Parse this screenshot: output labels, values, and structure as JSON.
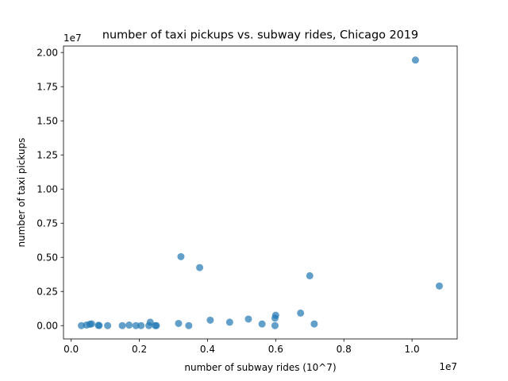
{
  "chart_data": {
    "type": "scatter",
    "title": "number of taxi pickups vs. subway rides, Chicago 2019",
    "xlabel": "number of subway rides (10^7)",
    "ylabel": "number of taxi pickups",
    "x_offset_label": "1e7",
    "y_offset_label": "1e7",
    "xlim": [
      -0.0225,
      1.1325
    ],
    "ylim": [
      -0.0975,
      2.0475
    ],
    "x_ticks": [
      0.0,
      0.2,
      0.4,
      0.6,
      0.8,
      1.0
    ],
    "x_tick_labels": [
      "0.0",
      "0.2",
      "0.4",
      "0.6",
      "0.8",
      "1.0"
    ],
    "y_ticks": [
      0.0,
      0.25,
      0.5,
      0.75,
      1.0,
      1.25,
      1.5,
      1.75,
      2.0
    ],
    "y_tick_labels": [
      "0.00",
      "0.25",
      "0.50",
      "0.75",
      "1.00",
      "1.25",
      "1.50",
      "1.75",
      "2.00"
    ],
    "grid": false,
    "marker_color": "#1f77b4",
    "marker_alpha": 0.7,
    "points": [
      {
        "x": 0.03,
        "y": 0.0
      },
      {
        "x": 0.045,
        "y": 0.004
      },
      {
        "x": 0.055,
        "y": 0.01
      },
      {
        "x": 0.06,
        "y": 0.013
      },
      {
        "x": 0.08,
        "y": 0.002
      },
      {
        "x": 0.082,
        "y": 0.001
      },
      {
        "x": 0.107,
        "y": 0.0
      },
      {
        "x": 0.15,
        "y": 0.0
      },
      {
        "x": 0.17,
        "y": 0.004
      },
      {
        "x": 0.19,
        "y": 0.0
      },
      {
        "x": 0.205,
        "y": 0.0
      },
      {
        "x": 0.228,
        "y": 0.0
      },
      {
        "x": 0.232,
        "y": 0.025
      },
      {
        "x": 0.247,
        "y": 0.0
      },
      {
        "x": 0.25,
        "y": 0.0
      },
      {
        "x": 0.315,
        "y": 0.016
      },
      {
        "x": 0.322,
        "y": 0.505
      },
      {
        "x": 0.345,
        "y": 0.0
      },
      {
        "x": 0.377,
        "y": 0.425
      },
      {
        "x": 0.408,
        "y": 0.04
      },
      {
        "x": 0.465,
        "y": 0.025
      },
      {
        "x": 0.52,
        "y": 0.048
      },
      {
        "x": 0.56,
        "y": 0.012
      },
      {
        "x": 0.598,
        "y": 0.0
      },
      {
        "x": 0.598,
        "y": 0.055
      },
      {
        "x": 0.6,
        "y": 0.076
      },
      {
        "x": 0.673,
        "y": 0.092
      },
      {
        "x": 0.7,
        "y": 0.365
      },
      {
        "x": 0.713,
        "y": 0.012
      },
      {
        "x": 1.01,
        "y": 1.945
      },
      {
        "x": 1.08,
        "y": 0.29
      }
    ]
  }
}
